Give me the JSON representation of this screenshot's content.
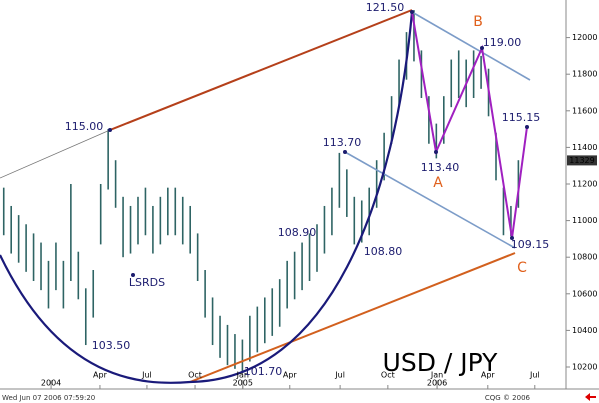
{
  "chart_data": {
    "type": "range-bar",
    "title": "USD / JPY",
    "footer_left": "Wed Jun 07 2006 07:59:20",
    "footer_right": "CQG © 2006",
    "color": "#2e6464",
    "x": [
      1,
      3,
      5,
      7,
      9,
      11,
      13,
      15,
      17,
      19,
      21,
      23,
      25,
      27,
      29,
      31,
      33,
      35,
      37,
      39,
      41,
      43,
      45,
      47,
      49,
      51,
      53,
      55,
      57,
      59,
      61,
      63,
      65,
      67,
      69,
      71,
      73,
      75,
      77,
      79,
      81,
      83,
      85,
      87,
      89,
      91,
      93,
      95,
      97,
      99,
      101,
      103,
      105,
      107,
      109,
      111,
      113,
      115,
      117,
      119,
      121,
      123,
      125,
      127,
      129,
      131,
      133,
      135,
      137,
      139
    ],
    "lows": [
      10920,
      10820,
      10770,
      10720,
      10670,
      10620,
      10520,
      10620,
      10520,
      10670,
      10570,
      10320,
      10470,
      10870,
      11170,
      11070,
      10800,
      10820,
      10870,
      10920,
      10820,
      10870,
      10920,
      10920,
      10870,
      10820,
      10670,
      10470,
      10320,
      10250,
      10210,
      10190,
      10170,
      10230,
      10280,
      10330,
      10370,
      10420,
      10520,
      10570,
      10620,
      10670,
      10720,
      10820,
      10920,
      11070,
      11020,
      10870,
      10880,
      10920,
      11070,
      11220,
      11420,
      11620,
      11770,
      11870,
      11670,
      11420,
      11340,
      11420,
      11620,
      11670,
      11620,
      11670,
      11720,
      11570,
      11220,
      10920,
      10915,
      11070
    ],
    "highs": [
      11180,
      11080,
      11030,
      10980,
      10930,
      10880,
      10780,
      10880,
      10780,
      11200,
      10830,
      10630,
      10730,
      11200,
      11500,
      11330,
      11130,
      11080,
      11130,
      11180,
      11080,
      11130,
      11180,
      11180,
      11130,
      11080,
      10930,
      10730,
      10580,
      10480,
      10430,
      10380,
      10350,
      10480,
      10530,
      10580,
      10630,
      10680,
      10780,
      10830,
      10880,
      10930,
      10980,
      11080,
      11180,
      11370,
      11280,
      11130,
      11110,
      11180,
      11330,
      11480,
      11680,
      11880,
      12030,
      12150,
      11930,
      11680,
      11530,
      11680,
      11880,
      11930,
      11880,
      11930,
      11900,
      11830,
      11480,
      11180,
      11080,
      11330
    ],
    "xlim": [
      0,
      151.5
    ],
    "xticks": [
      {
        "value": 26.8,
        "label": "Apr"
      },
      {
        "value": 39.4,
        "label": "Jul"
      },
      {
        "value": 52.3,
        "label": "Oct"
      },
      {
        "value": 65.1,
        "label": "Jan"
      },
      {
        "value": 77.7,
        "label": "Apr"
      },
      {
        "value": 91.2,
        "label": "Jul"
      },
      {
        "value": 104,
        "label": "Oct"
      },
      {
        "value": 117.2,
        "label": "Jan"
      },
      {
        "value": 130.8,
        "label": "Apr"
      },
      {
        "value": 143.4,
        "label": "Jul"
      }
    ],
    "year_ticks": [
      {
        "value": 13.7,
        "label": "2004"
      },
      {
        "value": 65.1,
        "label": "2005"
      },
      {
        "value": 117.2,
        "label": "2006"
      }
    ],
    "ylim": [
      10100,
      12200
    ],
    "yticks": [
      10200,
      10400,
      10600,
      10800,
      11000,
      11200,
      11400,
      11600,
      11800,
      12000
    ],
    "last_price": 11329,
    "annotations": [
      "121.50",
      "119.00",
      "115.00",
      "113.70",
      "113.40",
      "115.15",
      "108.90",
      "108.80",
      "109.15",
      "103.50",
      "101.70",
      "LSRDS"
    ],
    "pattern_points": [
      "A",
      "B",
      "C"
    ]
  }
}
